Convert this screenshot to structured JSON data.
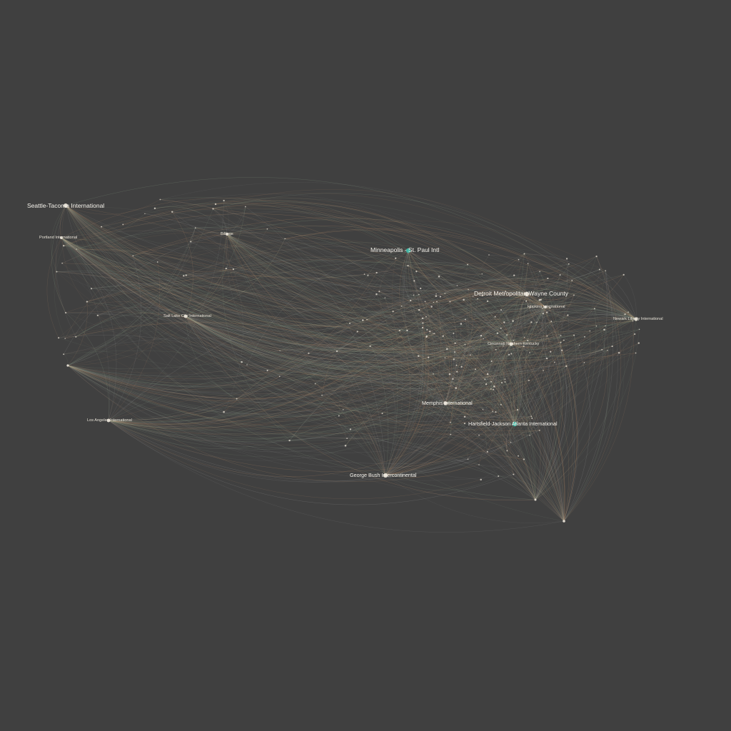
{
  "colors": {
    "background": "#404040",
    "edge_warm": "#c8966e",
    "edge_cool": "#8fa58a",
    "edge_grey": "#9a9a9a",
    "node": "#e8e2d6",
    "hub_accent": "#3fb8a8"
  },
  "labels": {
    "seattle": "Seattle-Tacoma International",
    "portland": "Portland International",
    "billings": "Billings",
    "saltlake": "Salt Lake City International",
    "losangeles": "Los Angeles International",
    "minneapolis": "Minneapolis - St. Paul Intl",
    "detroit": "Detroit Metropolitan Wayne County",
    "hopkins": "Hopkins International",
    "newark": "Newark Liberty International",
    "cincinnati": "Cincinnati Northern Kentucky",
    "memphis": "Memphis International",
    "atlanta": "Hartsfield-Jackson Atlanta International",
    "houston": "George Bush Intercontinental"
  }
}
